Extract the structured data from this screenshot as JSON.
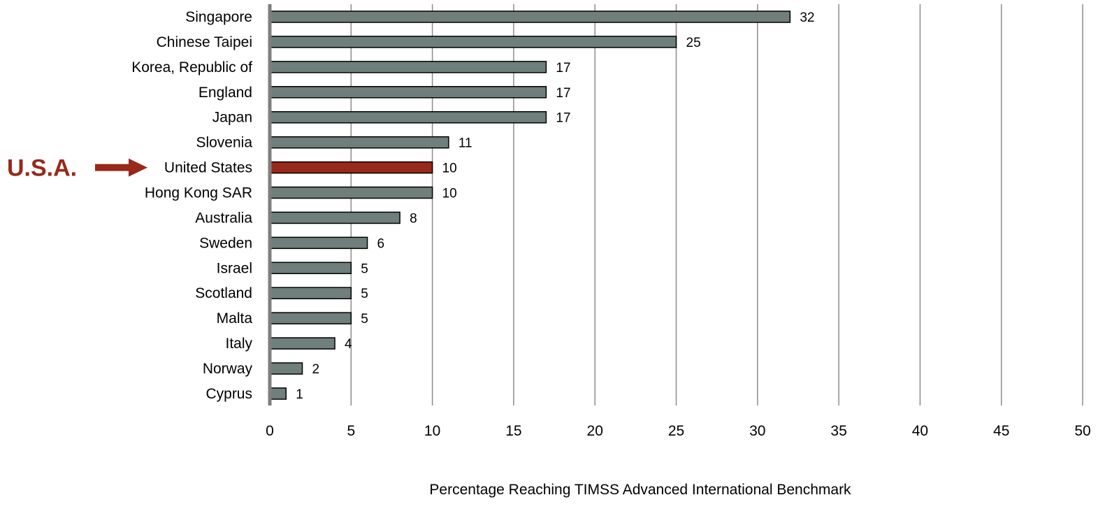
{
  "chart_data": {
    "type": "bar",
    "orientation": "horizontal",
    "categories": [
      "Singapore",
      "Chinese Taipei",
      "Korea, Republic of",
      "England",
      "Japan",
      "Slovenia",
      "United States",
      "Hong Kong SAR",
      "Australia",
      "Sweden",
      "Israel",
      "Scotland",
      "Malta",
      "Italy",
      "Norway",
      "Cyprus"
    ],
    "values": [
      32,
      25,
      17,
      17,
      17,
      11,
      10,
      10,
      8,
      6,
      5,
      5,
      5,
      4,
      2,
      1
    ],
    "highlight_category": "United States",
    "xlabel": "Percentage Reaching TIMSS Advanced International Benchmark",
    "xlim": [
      0,
      50
    ],
    "xticks": [
      0,
      5,
      10,
      15,
      20,
      25,
      30,
      35,
      40,
      45,
      50
    ],
    "grid": "vertical",
    "legend": "none"
  },
  "annotation": {
    "label": "U.S.A.",
    "target": "United States"
  },
  "colors": {
    "bar": "#6f7f7b",
    "highlight": "#98291b",
    "grid": "#8c8c8c",
    "axis": "#7f7f7f"
  }
}
